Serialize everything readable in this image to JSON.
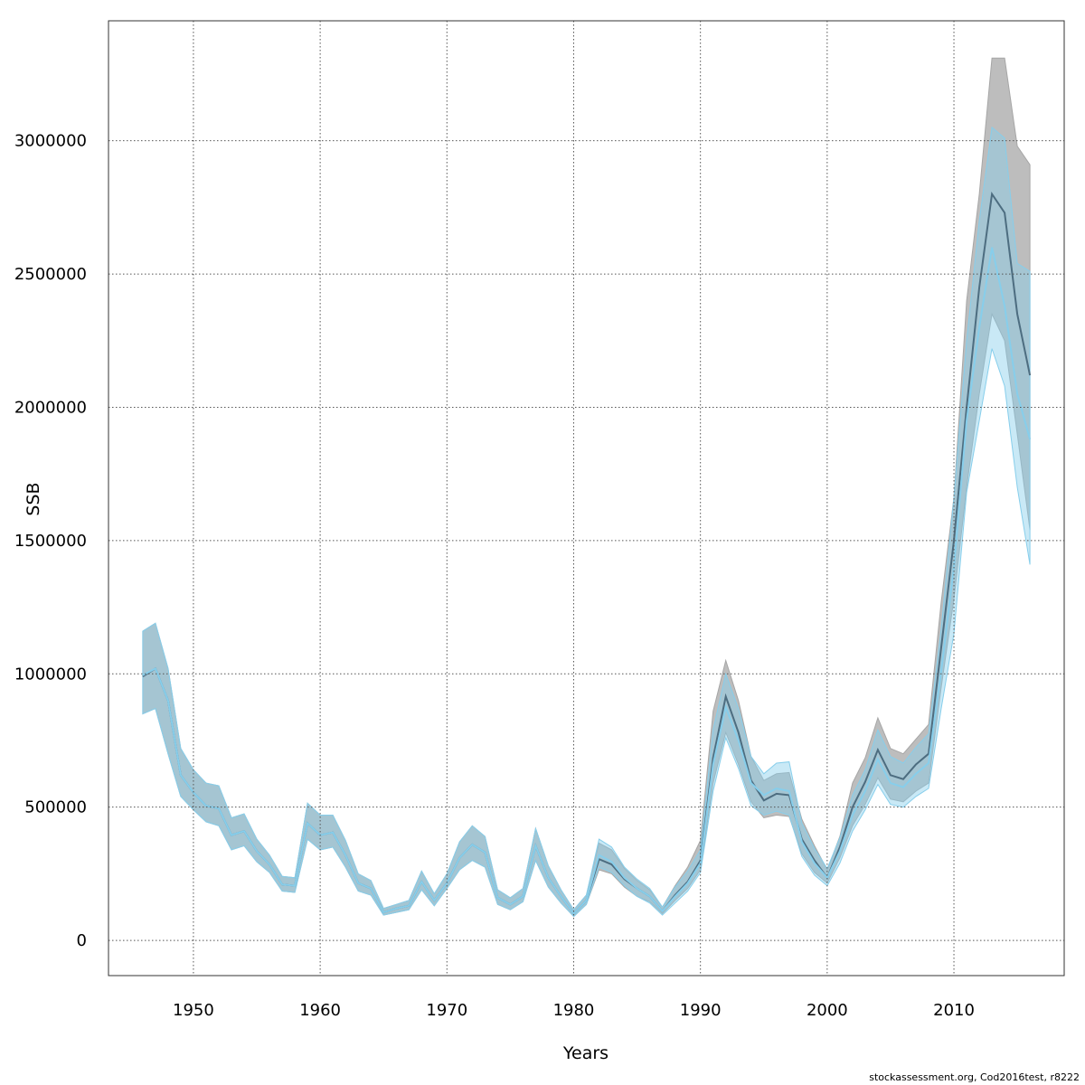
{
  "chart_data": {
    "type": "line",
    "xlabel": "Years",
    "ylabel": "SSB",
    "xlim": [
      1943.3,
      2018.7
    ],
    "ylim": [
      -132000,
      3450000
    ],
    "x_ticks": [
      1950,
      1960,
      1970,
      1980,
      1990,
      2000,
      2010
    ],
    "y_ticks": [
      0,
      500000,
      1000000,
      1500000,
      2000000,
      2500000,
      3000000
    ],
    "grid": true,
    "colors": {
      "grey_band": "#bdbdbd",
      "grey_band_edge": "#a6a6a6",
      "blue_band": "#87ceeb",
      "blue_line": "#87ceeb",
      "dark_line": "#4d6d80",
      "grid": "#555555"
    },
    "series": [
      {
        "years": [
          1946,
          1947,
          1948,
          1949,
          1950,
          1951,
          1952,
          1953,
          1954,
          1955,
          1956,
          1957,
          1958,
          1959,
          1960,
          1961,
          1962,
          1963,
          1964,
          1965,
          1966,
          1967,
          1968,
          1969,
          1970,
          1971,
          1972,
          1973,
          1974,
          1975,
          1976,
          1977,
          1978,
          1979,
          1980,
          1981,
          1982,
          1983,
          1984,
          1985,
          1986,
          1987,
          1988,
          1989,
          1990,
          1991,
          1992,
          1993,
          1994,
          1995,
          1996,
          1997,
          1998,
          1999,
          2000,
          2001,
          2002,
          2003,
          2004,
          2005,
          2006,
          2007,
          2008,
          2009,
          2010,
          2011,
          2012,
          2013,
          2014,
          2015,
          2016
        ],
        "values": [
          990000,
          1020000,
          900000,
          620000,
          555000,
          505000,
          495000,
          395000,
          410000,
          335000,
          285000,
          210000,
          205000,
          440000,
          395000,
          405000,
          320000,
          215000,
          195000,
          105000,
          120000,
          130000,
          220000,
          150000,
          215000,
          310000,
          360000,
          330000,
          160000,
          135000,
          165000,
          355000,
          235000,
          165000,
          100000,
          150000,
          305000,
          285000,
          230000,
          195000,
          165000,
          110000,
          170000,
          220000,
          300000,
          685000,
          915000,
          780000,
          600000,
          525000,
          550000,
          545000,
          380000,
          300000,
          235000,
          350000,
          500000,
          595000,
          715000,
          620000,
          605000,
          660000,
          700000,
          1100000,
          1500000,
          2000000,
          2450000,
          2800000,
          2730000,
          2350000,
          2120000
        ],
        "low": [
          850000,
          870000,
          700000,
          540000,
          490000,
          445000,
          430000,
          340000,
          355000,
          295000,
          255000,
          185000,
          180000,
          380000,
          340000,
          350000,
          275000,
          185000,
          170000,
          95000,
          105000,
          115000,
          190000,
          130000,
          195000,
          265000,
          300000,
          275000,
          135000,
          115000,
          145000,
          300000,
          200000,
          140000,
          90000,
          135000,
          265000,
          250000,
          200000,
          165000,
          145000,
          100000,
          150000,
          195000,
          265000,
          590000,
          780000,
          660000,
          520000,
          460000,
          470000,
          465000,
          325000,
          255000,
          215000,
          310000,
          430000,
          510000,
          610000,
          530000,
          520000,
          560000,
          590000,
          950000,
          1280000,
          1700000,
          2050000,
          2350000,
          2250000,
          1900000,
          1540000
        ],
        "high": [
          1160000,
          1190000,
          1020000,
          720000,
          640000,
          590000,
          580000,
          460000,
          475000,
          380000,
          320000,
          240000,
          235000,
          515000,
          470000,
          470000,
          375000,
          250000,
          225000,
          120000,
          135000,
          150000,
          260000,
          175000,
          250000,
          370000,
          430000,
          390000,
          190000,
          160000,
          195000,
          420000,
          280000,
          190000,
          115000,
          170000,
          365000,
          340000,
          270000,
          225000,
          190000,
          125000,
          205000,
          275000,
          375000,
          860000,
          1050000,
          900000,
          690000,
          600000,
          625000,
          630000,
          455000,
          355000,
          265000,
          390000,
          590000,
          685000,
          835000,
          720000,
          700000,
          755000,
          810000,
          1270000,
          1660000,
          2400000,
          2800000,
          3310000,
          3310000,
          2980000,
          2910000
        ]
      },
      {
        "years": [
          1946,
          1947,
          1948,
          1949,
          1950,
          1951,
          1952,
          1953,
          1954,
          1955,
          1956,
          1957,
          1958,
          1959,
          1960,
          1961,
          1962,
          1963,
          1964,
          1965,
          1966,
          1967,
          1968,
          1969,
          1970,
          1971,
          1972,
          1973,
          1974,
          1975,
          1976,
          1977,
          1978,
          1979,
          1980,
          1981,
          1982,
          1983,
          1984,
          1985,
          1986,
          1987,
          1988,
          1989,
          1990,
          1991,
          1992,
          1993,
          1994,
          1995,
          1996,
          1997,
          1998,
          1999,
          2000,
          2001,
          2002,
          2003,
          2004,
          2005,
          2006,
          2007,
          2008,
          2009,
          2010,
          2011,
          2012,
          2013,
          2014,
          2015,
          2016
        ],
        "values": [
          995000,
          1020000,
          900000,
          620000,
          555000,
          505000,
          495000,
          395000,
          410000,
          335000,
          285000,
          210000,
          205000,
          440000,
          395000,
          405000,
          320000,
          215000,
          195000,
          105000,
          120000,
          130000,
          220000,
          150000,
          215000,
          310000,
          360000,
          330000,
          160000,
          135000,
          165000,
          355000,
          235000,
          165000,
          100000,
          150000,
          320000,
          295000,
          235000,
          195000,
          165000,
          110000,
          165000,
          215000,
          290000,
          660000,
          875000,
          750000,
          590000,
          545000,
          570000,
          560000,
          370000,
          290000,
          235000,
          335000,
          470000,
          560000,
          680000,
          590000,
          575000,
          625000,
          665000,
          1010000,
          1400000,
          1950000,
          2300000,
          2600000,
          2380000,
          2050000,
          1880000
        ],
        "low": [
          850000,
          870000,
          700000,
          540000,
          490000,
          445000,
          430000,
          340000,
          355000,
          295000,
          255000,
          185000,
          180000,
          380000,
          340000,
          350000,
          275000,
          185000,
          170000,
          95000,
          105000,
          115000,
          190000,
          130000,
          195000,
          265000,
          300000,
          275000,
          135000,
          115000,
          145000,
          300000,
          200000,
          140000,
          90000,
          135000,
          275000,
          255000,
          205000,
          165000,
          140000,
          95000,
          140000,
          185000,
          255000,
          560000,
          760000,
          645000,
          505000,
          470000,
          485000,
          470000,
          315000,
          245000,
          205000,
          290000,
          410000,
          490000,
          585000,
          510000,
          500000,
          540000,
          570000,
          870000,
          1150000,
          1680000,
          1950000,
          2220000,
          2080000,
          1700000,
          1410000
        ],
        "high": [
          1160000,
          1190000,
          1020000,
          720000,
          640000,
          590000,
          580000,
          460000,
          475000,
          380000,
          320000,
          240000,
          235000,
          515000,
          470000,
          470000,
          375000,
          250000,
          225000,
          120000,
          135000,
          150000,
          260000,
          175000,
          250000,
          370000,
          430000,
          390000,
          190000,
          160000,
          195000,
          420000,
          280000,
          190000,
          115000,
          170000,
          380000,
          350000,
          275000,
          230000,
          195000,
          125000,
          200000,
          260000,
          340000,
          790000,
          1000000,
          870000,
          690000,
          625000,
          665000,
          670000,
          440000,
          345000,
          270000,
          385000,
          545000,
          640000,
          790000,
          690000,
          665000,
          725000,
          775000,
          1170000,
          1660000,
          2250000,
          2700000,
          3050000,
          3010000,
          2540000,
          2510000
        ]
      }
    ]
  },
  "footer": "stockassessment.org, Cod2016test, r8222"
}
